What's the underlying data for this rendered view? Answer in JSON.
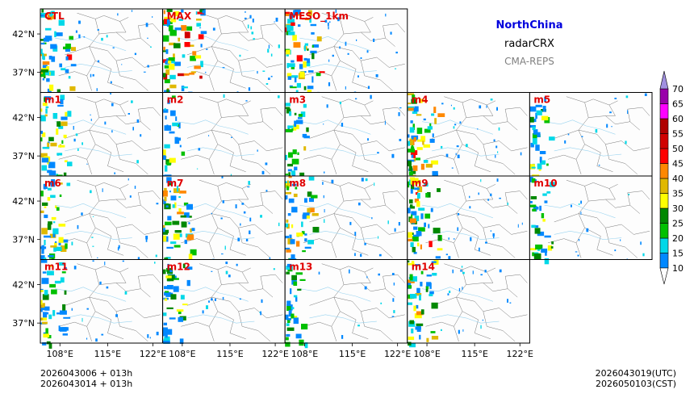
{
  "header": {
    "region": "NorthChina",
    "variable": "radarCRX",
    "system": "CMA-REPS"
  },
  "colors": {
    "region_title": "#0000dd",
    "panel_label": "#e00000",
    "system_label": "#808080"
  },
  "panels": [
    {
      "label": "CTL",
      "row": 0,
      "col": 0,
      "intensity": 0.7
    },
    {
      "label": "MAX",
      "row": 0,
      "col": 1,
      "intensity": 1.0
    },
    {
      "label": "MESO_1km",
      "row": 0,
      "col": 2,
      "intensity": 0.85
    },
    {
      "label": "m1",
      "row": 1,
      "col": 0,
      "intensity": 0.55
    },
    {
      "label": "m2",
      "row": 1,
      "col": 1,
      "intensity": 0.25
    },
    {
      "label": "m3",
      "row": 1,
      "col": 2,
      "intensity": 0.35
    },
    {
      "label": "m4",
      "row": 1,
      "col": 3,
      "intensity": 0.75
    },
    {
      "label": "m5",
      "row": 1,
      "col": 4,
      "intensity": 0.3
    },
    {
      "label": "m6",
      "row": 2,
      "col": 0,
      "intensity": 0.55
    },
    {
      "label": "m7",
      "row": 2,
      "col": 1,
      "intensity": 0.65
    },
    {
      "label": "m8",
      "row": 2,
      "col": 2,
      "intensity": 0.6
    },
    {
      "label": "m9",
      "row": 2,
      "col": 3,
      "intensity": 0.7
    },
    {
      "label": "m10",
      "row": 2,
      "col": 4,
      "intensity": 0.35
    },
    {
      "label": "m11",
      "row": 3,
      "col": 0,
      "intensity": 0.5
    },
    {
      "label": "m12",
      "row": 3,
      "col": 1,
      "intensity": 0.45
    },
    {
      "label": "m13",
      "row": 3,
      "col": 2,
      "intensity": 0.3
    },
    {
      "label": "m14",
      "row": 3,
      "col": 3,
      "intensity": 0.55
    }
  ],
  "lat_ticks": [
    "42°N",
    "37°N"
  ],
  "lon_ticks": [
    "108°E",
    "115°E",
    "122°E"
  ],
  "colorbar": {
    "levels": [
      "10",
      "15",
      "20",
      "25",
      "30",
      "35",
      "40",
      "45",
      "50",
      "55",
      "60",
      "65",
      "70"
    ],
    "colors": [
      "#0088ff",
      "#00d8e8",
      "#00c000",
      "#008800",
      "#ffff00",
      "#e0b800",
      "#ff8800",
      "#ff0000",
      "#d00000",
      "#b00000",
      "#ff00ff",
      "#9900aa",
      "#a090e0"
    ]
  },
  "footer": {
    "init_line1": "2026043006  +  013h",
    "init_line2": "2026043014  +  013h",
    "valid_utc": "2026043019(UTC)",
    "valid_cst": "2026050103(CST)"
  }
}
